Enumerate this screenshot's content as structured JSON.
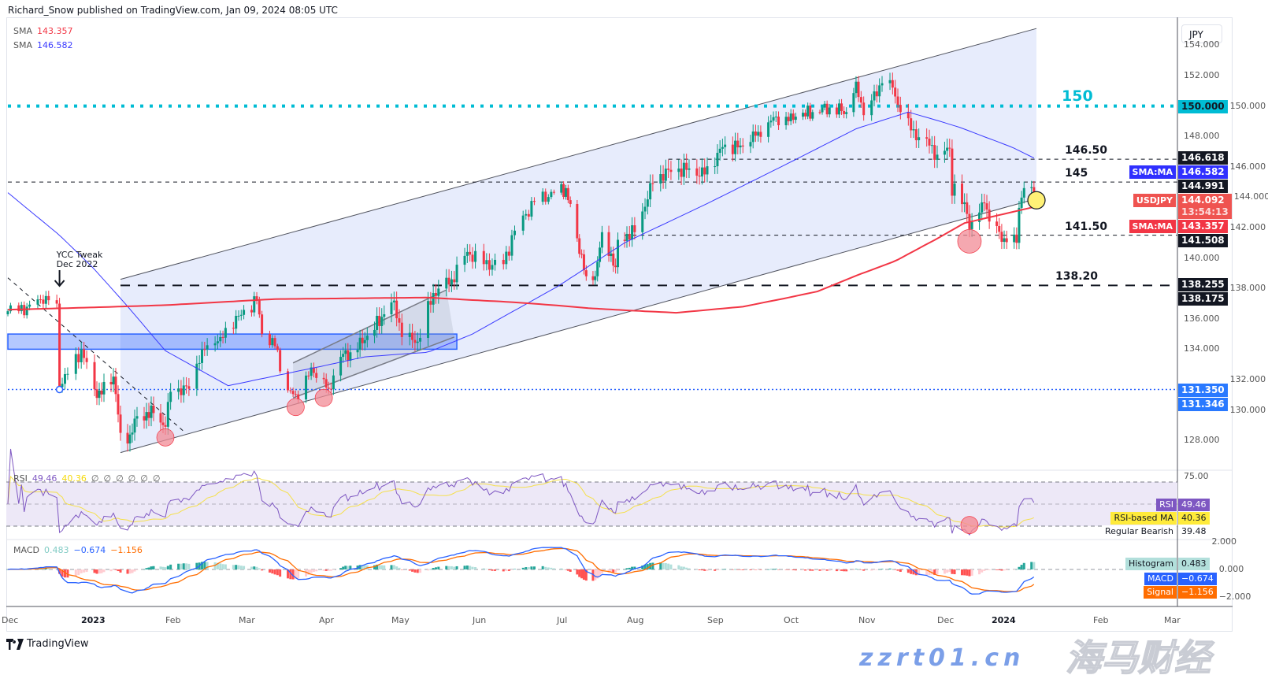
{
  "header": {
    "byline": "Richard_Snow published on TradingView.com, Jan 09, 2024 08:05 UTC"
  },
  "legend": {
    "sma_slow": {
      "label": "SMA",
      "value": "143.357",
      "color": "#f23645"
    },
    "sma_fast": {
      "label": "SMA",
      "value": "146.582",
      "color": "#3a3aff"
    }
  },
  "price_axis": {
    "currency": "JPY",
    "ticks": [
      "154.000",
      "152.000",
      "150.000",
      "148.000",
      "146.000",
      "144.000",
      "142.000",
      "140.000",
      "138.000",
      "136.000",
      "134.000",
      "132.000",
      "130.000",
      "128.000"
    ]
  },
  "price_labels": [
    {
      "value": "150.000",
      "bg": "#00bcd4",
      "fg": "#131722"
    },
    {
      "value": "146.618",
      "bg": "#131722",
      "fg": "#ffffff"
    },
    {
      "value": "146.582",
      "bg": "#3030ff",
      "fg": "#ffffff",
      "tag": "SMA:MA"
    },
    {
      "value": "144.991",
      "bg": "#131722",
      "fg": "#ffffff"
    },
    {
      "value": "144.092",
      "bg": "#ef5350",
      "fg": "#ffffff",
      "tag": "USDJPY",
      "sub": "13:54:13"
    },
    {
      "value": "143.357",
      "bg": "#f23645",
      "fg": "#ffffff",
      "tag": "SMA:MA"
    },
    {
      "value": "141.508",
      "bg": "#131722",
      "fg": "#ffffff"
    },
    {
      "value": "138.255",
      "bg": "#131722",
      "fg": "#ffffff"
    },
    {
      "value": "138.175",
      "bg": "#131722",
      "fg": "#ffffff"
    },
    {
      "value": "131.350",
      "bg": "#2979ff",
      "fg": "#ffffff"
    },
    {
      "value": "131.346",
      "bg": "#2979ff",
      "fg": "#ffffff"
    }
  ],
  "levels": [
    {
      "price": 150.0,
      "label": "150",
      "style": "dotted",
      "color": "#00bcd4",
      "from": "2022-12-01"
    },
    {
      "price": 146.5,
      "label": "146.50",
      "style": "dashed",
      "color": "#131722",
      "from": "2023-08-17"
    },
    {
      "price": 145.0,
      "label": "145",
      "style": "dashed",
      "color": "#131722",
      "from": "2022-12-01"
    },
    {
      "price": 141.5,
      "label": "141.50",
      "style": "dashed",
      "color": "#131722",
      "from": "2023-07-31"
    },
    {
      "price": 138.2,
      "label": "138.20",
      "style": "thickdash",
      "color": "#131722",
      "from": "2023-01-13"
    },
    {
      "price": 131.35,
      "label": "",
      "style": "bluedot",
      "color": "#2962ff",
      "from": "2022-12-01"
    }
  ],
  "annotation": {
    "line1": "YCC Tweak",
    "line2": "Dec 2022",
    "date": "2022-12-20"
  },
  "drawings": {
    "channel": {
      "upper": [
        [
          "2023-01-13",
          138.6
        ],
        [
          "2024-01-10",
          155.1
        ]
      ],
      "lower": [
        [
          "2023-01-13",
          127.2
        ],
        [
          "2024-01-10",
          143.9
        ]
      ],
      "fill": "#e3e9fb"
    },
    "small_channel": {
      "upper": [
        [
          "2023-03-22",
          133.1
        ],
        [
          "2023-05-22",
          137.9
        ]
      ],
      "lower": [
        [
          "2023-03-22",
          130.8
        ],
        [
          "2023-05-25",
          134.8
        ]
      ]
    },
    "downtrend": [
      [
        "2022-12-01",
        138.7
      ],
      [
        "2023-02-08",
        128.6
      ]
    ],
    "zone": {
      "from": "2022-12-01",
      "to": "2023-05-26",
      "low": 134.0,
      "high": 135.0,
      "color": "#2962ff"
    },
    "highlights": [
      [
        "2023-02-01",
        128.2
      ],
      [
        "2023-03-23",
        130.2
      ],
      [
        "2023-04-03",
        130.8
      ],
      [
        "2023-12-14",
        141.1
      ]
    ],
    "current_marker": [
      "2024-01-10",
      143.8
    ],
    "ycc_marker": [
      "2022-12-20",
      131.35
    ],
    "rsi_highlight": [
      "2023-12-14",
      31
    ]
  },
  "chart_data": {
    "type": "candlestick",
    "symbol": "USDJPY",
    "ylim": [
      127,
      155
    ],
    "closes": [
      [
        "2022-12-01",
        136.5
      ],
      [
        "2022-12-08",
        136.8
      ],
      [
        "2022-12-15",
        137.5
      ],
      [
        "2022-12-19",
        137.0
      ],
      [
        "2022-12-20",
        131.5
      ],
      [
        "2022-12-28",
        134.0
      ],
      [
        "2023-01-03",
        130.8
      ],
      [
        "2023-01-10",
        132.2
      ],
      [
        "2023-01-13",
        128.5
      ],
      [
        "2023-01-16",
        127.8
      ],
      [
        "2023-01-20",
        129.6
      ],
      [
        "2023-01-27",
        129.8
      ],
      [
        "2023-02-01",
        128.9
      ],
      [
        "2023-02-03",
        131.2
      ],
      [
        "2023-02-10",
        131.4
      ],
      [
        "2023-02-15",
        134.0
      ],
      [
        "2023-02-22",
        134.8
      ],
      [
        "2023-03-01",
        136.2
      ],
      [
        "2023-03-08",
        137.2
      ],
      [
        "2023-03-10",
        135.0
      ],
      [
        "2023-03-15",
        134.2
      ],
      [
        "2023-03-20",
        131.3
      ],
      [
        "2023-03-24",
        130.7
      ],
      [
        "2023-03-29",
        132.8
      ],
      [
        "2023-04-05",
        131.4
      ],
      [
        "2023-04-10",
        133.5
      ],
      [
        "2023-04-14",
        133.8
      ],
      [
        "2023-04-20",
        134.6
      ],
      [
        "2023-04-28",
        136.3
      ],
      [
        "2023-05-02",
        137.2
      ],
      [
        "2023-05-05",
        134.8
      ],
      [
        "2023-05-11",
        134.5
      ],
      [
        "2023-05-17",
        137.7
      ],
      [
        "2023-05-24",
        138.6
      ],
      [
        "2023-05-30",
        140.4
      ],
      [
        "2023-06-05",
        139.6
      ],
      [
        "2023-06-12",
        139.6
      ],
      [
        "2023-06-16",
        141.8
      ],
      [
        "2023-06-23",
        143.7
      ],
      [
        "2023-06-30",
        144.3
      ],
      [
        "2023-07-05",
        144.6
      ],
      [
        "2023-07-10",
        141.3
      ],
      [
        "2023-07-14",
        138.8
      ],
      [
        "2023-07-18",
        138.8
      ],
      [
        "2023-07-21",
        141.7
      ],
      [
        "2023-07-27",
        139.4
      ],
      [
        "2023-07-28",
        141.2
      ],
      [
        "2023-08-04",
        141.7
      ],
      [
        "2023-08-11",
        144.9
      ],
      [
        "2023-08-17",
        145.8
      ],
      [
        "2023-08-24",
        145.8
      ],
      [
        "2023-08-31",
        145.5
      ],
      [
        "2023-09-07",
        147.3
      ],
      [
        "2023-09-14",
        147.4
      ],
      [
        "2023-09-21",
        148.3
      ],
      [
        "2023-09-28",
        149.3
      ],
      [
        "2023-10-03",
        149.0
      ],
      [
        "2023-10-06",
        149.3
      ],
      [
        "2023-10-13",
        149.6
      ],
      [
        "2023-10-20",
        149.9
      ],
      [
        "2023-10-27",
        149.6
      ],
      [
        "2023-10-31",
        151.6
      ],
      [
        "2023-11-03",
        149.4
      ],
      [
        "2023-11-10",
        151.5
      ],
      [
        "2023-11-13",
        151.7
      ],
      [
        "2023-11-17",
        149.6
      ],
      [
        "2023-11-21",
        148.4
      ],
      [
        "2023-11-28",
        147.4
      ],
      [
        "2023-12-01",
        146.8
      ],
      [
        "2023-12-06",
        147.2
      ],
      [
        "2023-12-07",
        144.1
      ],
      [
        "2023-12-08",
        144.9
      ],
      [
        "2023-12-13",
        142.9
      ],
      [
        "2023-12-14",
        141.9
      ],
      [
        "2023-12-20",
        143.6
      ],
      [
        "2023-12-22",
        142.4
      ],
      [
        "2023-12-28",
        141.3
      ],
      [
        "2024-01-02",
        141.0
      ],
      [
        "2024-01-03",
        143.3
      ],
      [
        "2024-01-05",
        144.6
      ],
      [
        "2024-01-09",
        144.09
      ]
    ],
    "sma_slow": [
      [
        "2022-12-01",
        136.6
      ],
      [
        "2023-02-01",
        136.9
      ],
      [
        "2023-03-15",
        137.3
      ],
      [
        "2023-05-15",
        137.4
      ],
      [
        "2023-06-15",
        137.1
      ],
      [
        "2023-07-15",
        136.7
      ],
      [
        "2023-08-20",
        136.4
      ],
      [
        "2023-09-15",
        136.8
      ],
      [
        "2023-10-15",
        137.8
      ],
      [
        "2023-11-15",
        139.8
      ],
      [
        "2023-12-12",
        142.3
      ],
      [
        "2024-01-09",
        143.357
      ]
    ],
    "sma_fast": [
      [
        "2022-12-01",
        144.3
      ],
      [
        "2022-12-20",
        141.5
      ],
      [
        "2023-01-15",
        137.0
      ],
      [
        "2023-02-01",
        133.9
      ],
      [
        "2023-02-25",
        131.6
      ],
      [
        "2023-03-25",
        132.6
      ],
      [
        "2023-04-20",
        133.5
      ],
      [
        "2023-05-15",
        133.8
      ],
      [
        "2023-06-01",
        135.0
      ],
      [
        "2023-06-30",
        138.0
      ],
      [
        "2023-07-31",
        141.0
      ],
      [
        "2023-08-31",
        143.5
      ],
      [
        "2023-09-30",
        146.0
      ],
      [
        "2023-10-31",
        148.5
      ],
      [
        "2023-11-20",
        149.6
      ],
      [
        "2023-12-10",
        148.6
      ],
      [
        "2023-12-31",
        147.3
      ],
      [
        "2024-01-09",
        146.582
      ]
    ],
    "colors": {
      "up": "#089981",
      "down": "#f23645",
      "sma_slow": "#f23645",
      "sma_fast": "#3a3aff"
    }
  },
  "rsi": {
    "legend": {
      "label": "RSI",
      "rsi": "49.46",
      "ma": "40.36",
      "nulls": [
        "∅",
        "∅",
        "∅",
        "∅",
        "∅",
        "∅"
      ]
    },
    "axis": "75.00",
    "bands": [
      70,
      50,
      30
    ],
    "labels": [
      {
        "tag": "RSI",
        "value": "49.46",
        "bg": "#7e57c2",
        "fg": "#ffffff"
      },
      {
        "tag": "RSI-based MA",
        "value": "40.36",
        "bg": "#ffeb3b",
        "fg": "#131722"
      },
      {
        "tag": "Regular Bearish",
        "value": "39.48",
        "bg": "#ffffff",
        "fg": "#131722"
      }
    ],
    "colors": {
      "rsi": "#7e57c2",
      "ma": "#f5e04a",
      "band": "#ede8f7"
    }
  },
  "macd": {
    "legend": {
      "label": "MACD",
      "hist": "0.483",
      "macd": "−0.674",
      "signal": "−1.156"
    },
    "axis": [
      "2.000",
      "0.000",
      "−2.000"
    ],
    "labels": [
      {
        "tag": "Histogram",
        "value": "0.483",
        "bg": "#b2dfdb",
        "fg": "#131722"
      },
      {
        "tag": "MACD",
        "value": "−0.674",
        "bg": "#2962ff",
        "fg": "#ffffff"
      },
      {
        "tag": "Signal",
        "value": "−1.156",
        "bg": "#ff6d00",
        "fg": "#ffffff"
      }
    ],
    "colors": {
      "macd": "#2962ff",
      "signal": "#ff6d00",
      "hist_up_strong": "#26a69a",
      "hist_up_weak": "#b2dfdb",
      "hist_dn_strong": "#ff5252",
      "hist_dn_weak": "#ffcdd2"
    }
  },
  "time_axis": [
    {
      "label": "Dec",
      "bold": false
    },
    {
      "label": "2023",
      "bold": true
    },
    {
      "label": "Feb",
      "bold": false
    },
    {
      "label": "Mar",
      "bold": false
    },
    {
      "label": "Apr",
      "bold": false
    },
    {
      "label": "May",
      "bold": false
    },
    {
      "label": "Jun",
      "bold": false
    },
    {
      "label": "Jul",
      "bold": false
    },
    {
      "label": "Aug",
      "bold": false
    },
    {
      "label": "Sep",
      "bold": false
    },
    {
      "label": "Oct",
      "bold": false
    },
    {
      "label": "Nov",
      "bold": false
    },
    {
      "label": "Dec",
      "bold": false
    },
    {
      "label": "2024",
      "bold": true
    },
    {
      "label": "Feb",
      "bold": false
    },
    {
      "label": "Mar",
      "bold": false
    }
  ],
  "footer": {
    "brand": "TradingView"
  },
  "watermark": {
    "cn": "海马财经",
    "url": "zzrt01.cn"
  }
}
